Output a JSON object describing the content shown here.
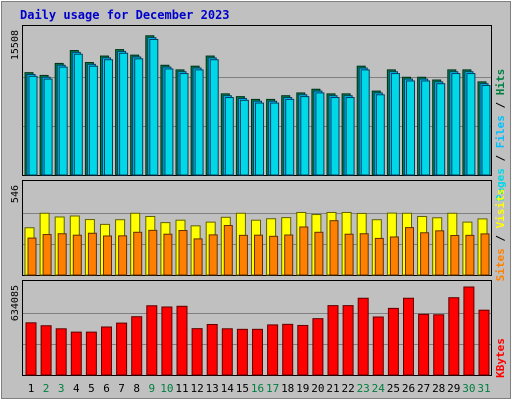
{
  "title": "Daily usage for December 2023",
  "colors": {
    "background": "#c0c0c0",
    "title": "#0000cc",
    "hits": "#008040",
    "files": "#00c0ff",
    "pages": "#00d8e8",
    "visits": "#ffff00",
    "sites": "#ff8000",
    "kbytes": "#ff0000",
    "weekend_label": "#008040",
    "weekday_label": "#000000"
  },
  "chart_data": [
    {
      "type": "bar",
      "name": "hits-files-pages",
      "y_tick_label": "15508",
      "ylim": [
        0,
        15508
      ],
      "right_label": {
        "pages": "Pages",
        "sep1": " / ",
        "files": "Files",
        "sep2": " / ",
        "hits": "Hits"
      },
      "categories": [
        "1",
        "2",
        "3",
        "4",
        "5",
        "6",
        "7",
        "8",
        "9",
        "10",
        "11",
        "12",
        "13",
        "14",
        "15",
        "16",
        "17",
        "18",
        "19",
        "20",
        "21",
        "22",
        "23",
        "24",
        "25",
        "26",
        "27",
        "28",
        "29",
        "30",
        "31"
      ],
      "weekend_days": [
        "2",
        "3",
        "9",
        "10",
        "16",
        "17",
        "23",
        "24",
        "30",
        "31"
      ],
      "series": [
        {
          "name": "Hits",
          "values": [
            11100,
            10800,
            12100,
            13500,
            12200,
            12900,
            13600,
            13000,
            15100,
            11900,
            11400,
            11800,
            12900,
            8800,
            8500,
            8200,
            8200,
            8600,
            8900,
            9300,
            8800,
            8800,
            11800,
            9100,
            11400,
            10600,
            10600,
            10300,
            11400,
            11400,
            10100
          ]
        },
        {
          "name": "Files",
          "values": [
            10900,
            10600,
            11900,
            13300,
            12000,
            12700,
            13400,
            12800,
            14900,
            11700,
            11200,
            11600,
            12700,
            8600,
            8300,
            8000,
            8000,
            8400,
            8700,
            9100,
            8600,
            8600,
            11600,
            8900,
            11200,
            10400,
            10400,
            10100,
            11200,
            11200,
            9900
          ]
        },
        {
          "name": "Pages",
          "values": [
            10700,
            10400,
            11700,
            13100,
            11800,
            12500,
            13200,
            12600,
            14700,
            11500,
            11000,
            11400,
            12500,
            8400,
            8100,
            7800,
            7800,
            8200,
            8500,
            8900,
            8400,
            8400,
            11400,
            8700,
            11000,
            10200,
            10200,
            9900,
            11000,
            11000,
            9700
          ]
        }
      ]
    },
    {
      "type": "bar",
      "name": "visits-sites",
      "y_tick_label": "546",
      "ylim": [
        0,
        546
      ],
      "right_label": {
        "sites": "Sites",
        "sep": " / ",
        "visits": "Visits"
      },
      "series": [
        {
          "name": "Visits",
          "values": [
            293,
            383,
            360,
            366,
            344,
            314,
            343,
            383,
            363,
            325,
            340,
            305,
            328,
            358,
            383,
            340,
            349,
            356,
            388,
            375,
            388,
            388,
            382,
            343,
            384,
            383,
            363,
            355,
            383,
            328,
            348
          ]
        },
        {
          "name": "Sites",
          "values": [
            229,
            251,
            256,
            247,
            259,
            242,
            243,
            265,
            277,
            253,
            276,
            224,
            249,
            307,
            246,
            247,
            240,
            248,
            298,
            265,
            337,
            253,
            256,
            227,
            236,
            294,
            262,
            274,
            245,
            246,
            255
          ]
        }
      ]
    },
    {
      "type": "bar",
      "name": "kbytes",
      "y_tick_label": "634085",
      "ylim": [
        0,
        634085
      ],
      "right_label": {
        "kbytes": "KBytes"
      },
      "series": [
        {
          "name": "KBytes",
          "values": [
            376000,
            355000,
            333000,
            309000,
            309000,
            346000,
            374000,
            420000,
            499000,
            490000,
            495000,
            334000,
            364000,
            333000,
            329000,
            329000,
            361000,
            365000,
            357000,
            406000,
            500000,
            500000,
            553000,
            418000,
            480000,
            553000,
            437000,
            434000,
            557000,
            634085,
            467000
          ]
        }
      ]
    }
  ]
}
